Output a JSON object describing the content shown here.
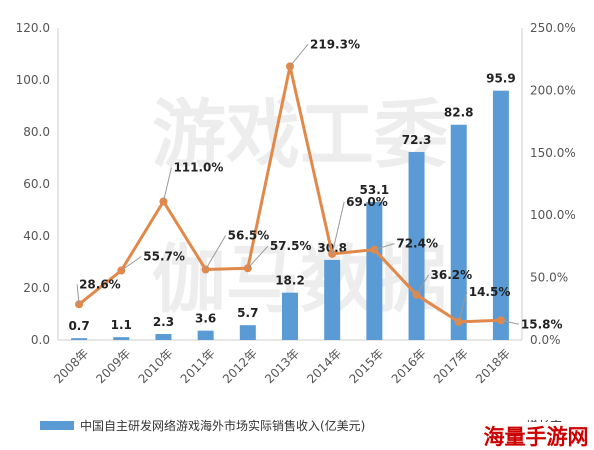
{
  "chart_data": {
    "type": "bar",
    "categories": [
      "2008年",
      "2009年",
      "2010年",
      "2011年",
      "2012年",
      "2013年",
      "2014年",
      "2015年",
      "2016年",
      "2017年",
      "2018年"
    ],
    "series": [
      {
        "name": "中国自主研发网络游戏海外市场实际销售收入(亿美元)",
        "type": "bar",
        "axis": "left",
        "values": [
          0.7,
          1.1,
          2.3,
          3.6,
          5.7,
          18.2,
          30.8,
          53.1,
          72.3,
          82.8,
          95.9
        ],
        "labels": [
          "0.7",
          "1.1",
          "2.3",
          "3.6",
          "5.7",
          "18.2",
          "30.8",
          "53.1",
          "72.3",
          "82.8",
          "95.9"
        ]
      },
      {
        "name": "增长率",
        "type": "line",
        "axis": "right",
        "values": [
          28.6,
          55.7,
          111.0,
          56.5,
          57.5,
          219.3,
          69.0,
          72.4,
          36.2,
          14.5,
          15.8
        ],
        "labels": [
          "28.6%",
          "55.7%",
          "111.0%",
          "56.5%",
          "57.5%",
          "219.3%",
          "69.0%",
          "72.4%",
          "36.2%",
          "14.5%",
          "15.8%"
        ]
      }
    ],
    "y_left": {
      "range": [
        0,
        120
      ],
      "ticks": [
        "0.0",
        "20.0",
        "40.0",
        "60.0",
        "80.0",
        "100.0",
        "120.0"
      ]
    },
    "y_right": {
      "range": [
        0,
        250
      ],
      "ticks": [
        "0.0%",
        "50.0%",
        "100.0%",
        "150.0%",
        "200.0%",
        "250.0%"
      ]
    },
    "grid": false,
    "legend": "bottom",
    "colors": {
      "bar": "#5b9bd5",
      "line": "#e0894b"
    }
  },
  "watermark": {
    "top": "游戏工委",
    "bottom": "伽马数据"
  },
  "logo": "海量手游网"
}
